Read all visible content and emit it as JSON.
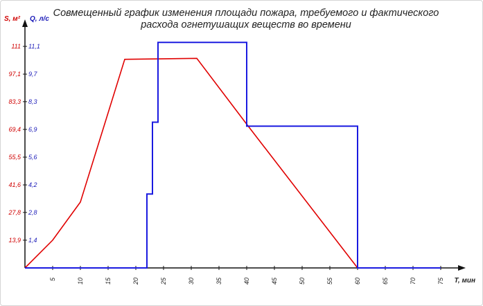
{
  "chart_data": {
    "type": "line",
    "title_line1": "Совмещенный график изменения площади пожара, требуемого и фактического",
    "title_line2": "расхода огнетушащих веществ во времени",
    "xlabel": "T, мин",
    "ylabel_left": "S, м²",
    "ylabel_right": "Q, л/с",
    "xlim": [
      0,
      80
    ],
    "ylim_left": [
      0,
      125
    ],
    "ylim_right": [
      0,
      12.5
    ],
    "x_ticks": [
      5,
      10,
      15,
      20,
      25,
      30,
      35,
      40,
      45,
      50,
      55,
      60,
      65,
      70,
      75
    ],
    "y_ticks_left": [
      "13,9",
      "27,8",
      "41,6",
      "55,5",
      "69,4",
      "83,3",
      "97,1",
      "111"
    ],
    "y_ticks_right": [
      "1,4",
      "2,8",
      "4,2",
      "5,6",
      "6,9",
      "8,3",
      "9,7",
      "11,1"
    ],
    "y_tick_values_left": [
      13.9,
      27.8,
      41.6,
      55.5,
      69.4,
      83.3,
      97.1,
      111
    ],
    "series": [
      {
        "axis": "left",
        "color": "#e00000",
        "points": [
          [
            0,
            0
          ],
          [
            5,
            13.9
          ],
          [
            10,
            33
          ],
          [
            18,
            104.5
          ],
          [
            31,
            105
          ],
          [
            40,
            72
          ],
          [
            60,
            0
          ]
        ]
      },
      {
        "axis": "right",
        "color": "#1a1ae0",
        "points": [
          [
            0,
            0
          ],
          [
            22,
            0
          ],
          [
            22,
            3.7
          ],
          [
            23,
            3.7
          ],
          [
            23,
            7.3
          ],
          [
            24,
            7.3
          ],
          [
            24,
            11.3
          ],
          [
            40,
            11.3
          ],
          [
            40,
            7.1
          ],
          [
            60,
            7.1
          ],
          [
            60,
            0
          ],
          [
            75,
            0
          ]
        ]
      }
    ]
  }
}
